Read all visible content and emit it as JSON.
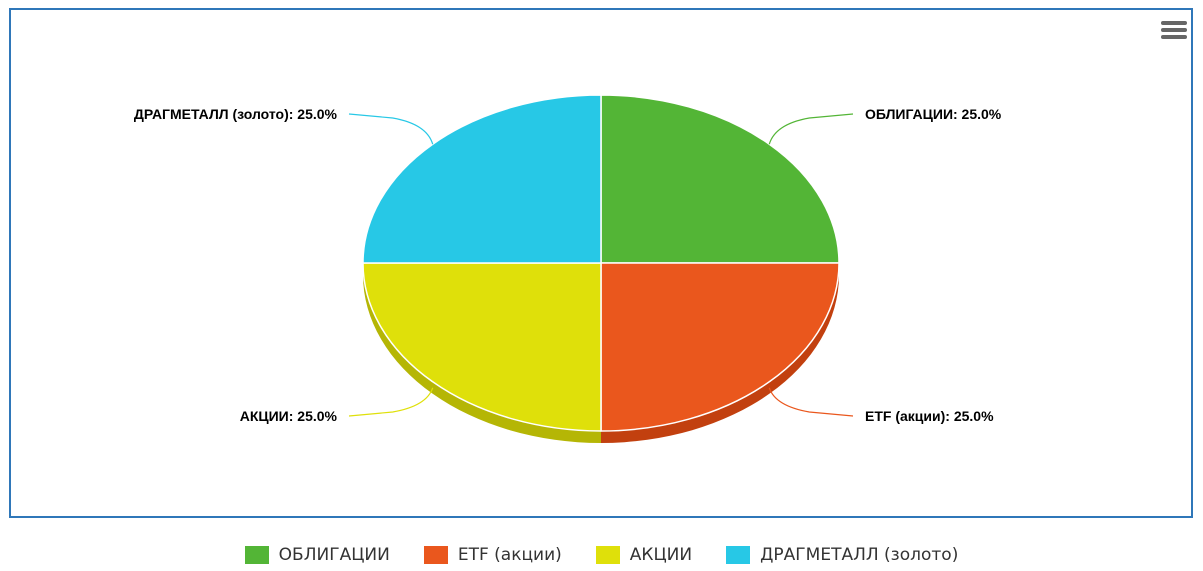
{
  "toolbar": {
    "menu_icon": "hamburger-menu-icon"
  },
  "chart_data": {
    "type": "pie",
    "style": "3d",
    "data_label_format": "{name}: {value}%",
    "legend_position": "bottom",
    "slices": [
      {
        "name": "ОБЛИГАЦИИ",
        "value": 25.0,
        "label": "ОБЛИГАЦИИ: 25.0%",
        "color": "#53b536",
        "side_color": "#3f8f28"
      },
      {
        "name": "ETF (акции)",
        "value": 25.0,
        "label": "ETF (акции): 25.0%",
        "color": "#ea571d",
        "side_color": "#c2400f"
      },
      {
        "name": "АКЦИИ",
        "value": 25.0,
        "label": "АКЦИИ: 25.0%",
        "color": "#dfe00a",
        "side_color": "#b5b605"
      },
      {
        "name": "ДРАГМЕТАЛЛ (золото)",
        "value": 25.0,
        "label": "ДРАГМЕТАЛЛ (золото): 25.0%",
        "color": "#27c8e6",
        "side_color": "#1aa1ba"
      }
    ]
  }
}
